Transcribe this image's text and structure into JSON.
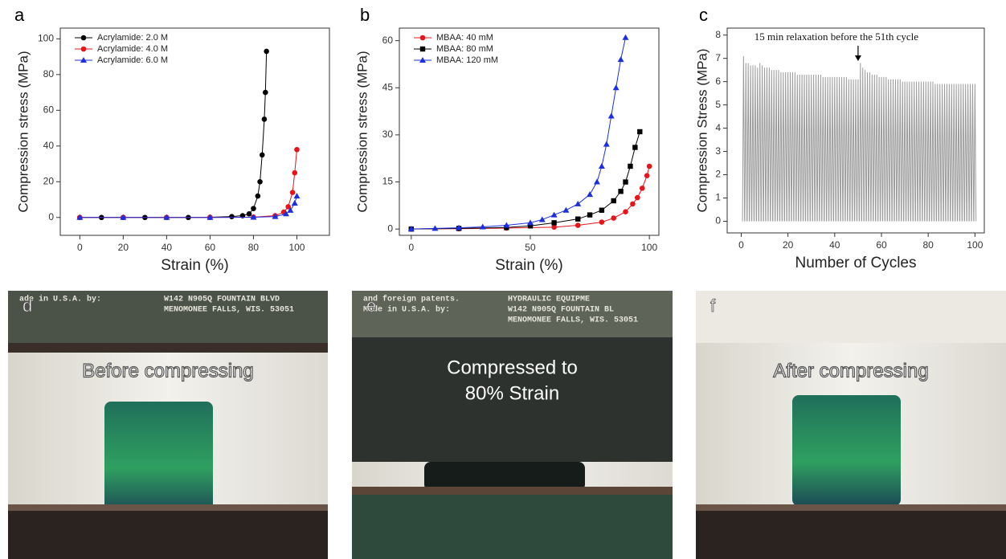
{
  "chart_data": [
    {
      "panel": "a",
      "type": "line",
      "xlabel": "Strain (%)",
      "ylabel": "Compression stress (MPa)",
      "xlim": [
        -9,
        115
      ],
      "xticks": [
        0,
        20,
        40,
        60,
        80,
        100
      ],
      "ylim": [
        -10,
        106
      ],
      "yticks": [
        0,
        20,
        40,
        60,
        80,
        100
      ],
      "legend": "upper-left",
      "series": [
        {
          "name": "Acrylamide: 2.0 M",
          "color": "#000000",
          "marker": "circle",
          "x": [
            0,
            10,
            20,
            30,
            40,
            50,
            60,
            70,
            75,
            78,
            80,
            82,
            83,
            84,
            85,
            85.5,
            86
          ],
          "values": [
            0,
            0,
            0,
            0,
            0,
            0,
            0.1,
            0.5,
            1,
            2,
            5,
            12,
            20,
            35,
            55,
            70,
            93
          ]
        },
        {
          "name": "Acrylamide: 4.0 M",
          "color": "#e8141a",
          "marker": "circle",
          "x": [
            0,
            20,
            40,
            60,
            80,
            90,
            94,
            96,
            98,
            99,
            100
          ],
          "values": [
            0,
            0,
            0,
            0,
            0.2,
            1,
            3,
            6,
            14,
            25,
            38
          ]
        },
        {
          "name": "Acrylamide: 6.0 M",
          "color": "#1c2fe0",
          "marker": "triangle",
          "x": [
            0,
            20,
            40,
            60,
            80,
            90,
            95,
            97,
            99,
            100
          ],
          "values": [
            0,
            0,
            0,
            0,
            0.1,
            0.5,
            2,
            4,
            8,
            12
          ]
        }
      ]
    },
    {
      "panel": "b",
      "type": "line",
      "xlabel": "Strain (%)",
      "ylabel": "Compression stress (MPa)",
      "xlim": [
        -5,
        104
      ],
      "xticks": [
        0,
        50,
        100
      ],
      "ylim": [
        -2,
        64
      ],
      "yticks": [
        0,
        15,
        30,
        45,
        60
      ],
      "legend": "upper-left",
      "series": [
        {
          "name": "MBAA: 40 mM",
          "color": "#e8141a",
          "marker": "circle",
          "x": [
            0,
            20,
            40,
            60,
            70,
            80,
            85,
            90,
            93,
            95,
            97,
            99,
            100
          ],
          "values": [
            0,
            0.1,
            0.3,
            0.6,
            1.2,
            2.2,
            3.5,
            5.5,
            8,
            10,
            13,
            17,
            20
          ]
        },
        {
          "name": "MBAA: 80 mM",
          "color": "#000000",
          "marker": "square",
          "x": [
            0,
            20,
            40,
            50,
            60,
            70,
            75,
            80,
            85,
            88,
            90,
            92,
            94,
            96
          ],
          "values": [
            0,
            0.2,
            0.5,
            1,
            2,
            3.2,
            4.5,
            6,
            9,
            12,
            15,
            20,
            26,
            31
          ]
        },
        {
          "name": "MBAA: 120 mM",
          "color": "#1c2fe0",
          "marker": "triangle",
          "x": [
            0,
            10,
            20,
            30,
            40,
            50,
            55,
            60,
            65,
            70,
            75,
            78,
            80,
            82,
            84,
            86,
            88,
            90
          ],
          "values": [
            0,
            0.2,
            0.4,
            0.7,
            1.2,
            2,
            3,
            4.5,
            6,
            8,
            11,
            15,
            20,
            27,
            36,
            45,
            54,
            61
          ]
        }
      ]
    },
    {
      "panel": "c",
      "type": "spike",
      "xlabel": "Number of Cycles",
      "ylabel": "Compression Stress (MPa)",
      "annotation": "15 min relaxation before the 51th cycle",
      "xlim": [
        -6,
        104
      ],
      "xticks": [
        0,
        20,
        40,
        60,
        80,
        100
      ],
      "ylim": [
        -0.5,
        8.3
      ],
      "yticks": [
        0,
        1,
        2,
        3,
        4,
        5,
        6,
        7,
        8
      ],
      "color": "#9a9a9a",
      "x": [
        1,
        2,
        3,
        4,
        5,
        6,
        7,
        8,
        9,
        10,
        11,
        12,
        13,
        14,
        15,
        16,
        17,
        18,
        19,
        20,
        21,
        22,
        23,
        24,
        25,
        26,
        27,
        28,
        29,
        30,
        31,
        32,
        33,
        34,
        35,
        36,
        37,
        38,
        39,
        40,
        41,
        42,
        43,
        44,
        45,
        46,
        47,
        48,
        49,
        50,
        51,
        52,
        53,
        54,
        55,
        56,
        57,
        58,
        59,
        60,
        61,
        62,
        63,
        64,
        65,
        66,
        67,
        68,
        69,
        70,
        71,
        72,
        73,
        74,
        75,
        76,
        77,
        78,
        79,
        80,
        81,
        82,
        83,
        84,
        85,
        86,
        87,
        88,
        89,
        90,
        91,
        92,
        93,
        94,
        95,
        96,
        97,
        98,
        99,
        100
      ],
      "values": [
        7.1,
        6.8,
        6.8,
        6.7,
        6.7,
        6.7,
        6.6,
        6.8,
        6.7,
        6.6,
        6.6,
        6.6,
        6.5,
        6.5,
        6.5,
        6.5,
        6.4,
        6.4,
        6.4,
        6.4,
        6.4,
        6.4,
        6.4,
        6.3,
        6.3,
        6.3,
        6.3,
        6.3,
        6.3,
        6.3,
        6.3,
        6.3,
        6.3,
        6.3,
        6.2,
        6.2,
        6.2,
        6.2,
        6.2,
        6.2,
        6.2,
        6.2,
        6.2,
        6.2,
        6.2,
        6.1,
        6.1,
        6.1,
        6.1,
        6.1,
        6.8,
        6.6,
        6.5,
        6.4,
        6.4,
        6.3,
        6.3,
        6.3,
        6.2,
        6.2,
        6.2,
        6.2,
        6.1,
        6.1,
        6.1,
        6.1,
        6.1,
        6.1,
        6.0,
        6.0,
        6.0,
        6.0,
        6.0,
        6.0,
        6.0,
        6.0,
        6.0,
        6.0,
        6.0,
        6.0,
        6.0,
        6.0,
        5.9,
        5.9,
        5.9,
        5.9,
        5.9,
        5.9,
        5.9,
        5.9,
        5.9,
        5.9,
        5.9,
        5.9,
        5.9,
        5.9,
        5.9,
        5.9,
        5.9,
        5.9
      ]
    }
  ],
  "photos": [
    {
      "panel": "d",
      "caption": [
        "Before compressing"
      ],
      "plate": [
        "ade in U.S.A. by:",
        "W142 N905Q FOUNTAIN BLVD",
        "MENOMONEE FALLS, WIS. 53051"
      ]
    },
    {
      "panel": "e",
      "caption": [
        "Compressed to",
        "80% Strain"
      ],
      "plate": [
        "and foreign patents.",
        "Made in U.S.A. by:",
        "HYDRAULIC EQUIPME",
        "W142 N905Q FOUNTAIN BL",
        "MENOMONEE FALLS, WIS. 53051"
      ]
    },
    {
      "panel": "f",
      "caption": [
        "After compressing"
      ],
      "plate": []
    }
  ]
}
